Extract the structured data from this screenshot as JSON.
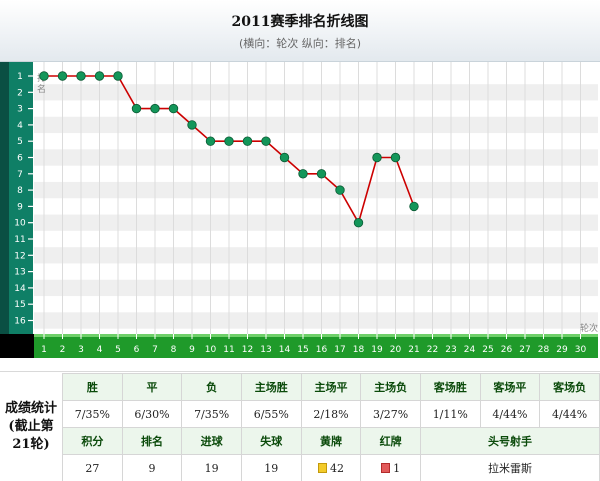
{
  "title": "2011赛季排名折线图",
  "subtitle": "(横向：轮次 纵向：排名)",
  "chart_data": {
    "type": "line",
    "x": [
      1,
      2,
      3,
      4,
      5,
      6,
      7,
      8,
      9,
      10,
      11,
      12,
      13,
      14,
      15,
      16,
      17,
      18,
      19,
      20,
      21
    ],
    "y": [
      1,
      1,
      1,
      1,
      1,
      3,
      3,
      3,
      4,
      5,
      5,
      5,
      5,
      6,
      7,
      7,
      8,
      10,
      6,
      6,
      9
    ],
    "x_ticks": [
      "1",
      "2",
      "3",
      "4",
      "5",
      "6",
      "7",
      "8",
      "9",
      "10",
      "11",
      "12",
      "13",
      "14",
      "15",
      "16",
      "17",
      "18",
      "19",
      "20",
      "21",
      "22",
      "23",
      "24",
      "25",
      "26",
      "27",
      "28",
      "29",
      "30"
    ],
    "y_ticks": [
      "1",
      "2",
      "3",
      "4",
      "5",
      "6",
      "7",
      "8",
      "9",
      "10",
      "11",
      "12",
      "13",
      "14",
      "15",
      "16"
    ],
    "xlabel": "轮次",
    "ylabel": "排名",
    "ylim": [
      1,
      16
    ],
    "xlim": [
      1,
      30
    ],
    "y_inverted": true,
    "grid": true,
    "line_color": "#cc0000",
    "marker_color": "#14965a"
  },
  "stats": {
    "side_label": "成绩统计\n(截止第\n21轮)",
    "row1_headers": [
      "胜",
      "平",
      "负",
      "主场胜",
      "主场平",
      "主场负",
      "客场胜",
      "客场平",
      "客场负"
    ],
    "row1_values": [
      "7/35%",
      "6/30%",
      "7/35%",
      "6/55%",
      "2/18%",
      "3/27%",
      "1/11%",
      "4/44%",
      "4/44%"
    ],
    "row2_headers": [
      "积分",
      "排名",
      "进球",
      "失球",
      "黄牌",
      "红牌",
      "头号射手"
    ],
    "row2_values": [
      "27",
      "9",
      "19",
      "19",
      "42",
      "1",
      "拉米雷斯"
    ]
  }
}
